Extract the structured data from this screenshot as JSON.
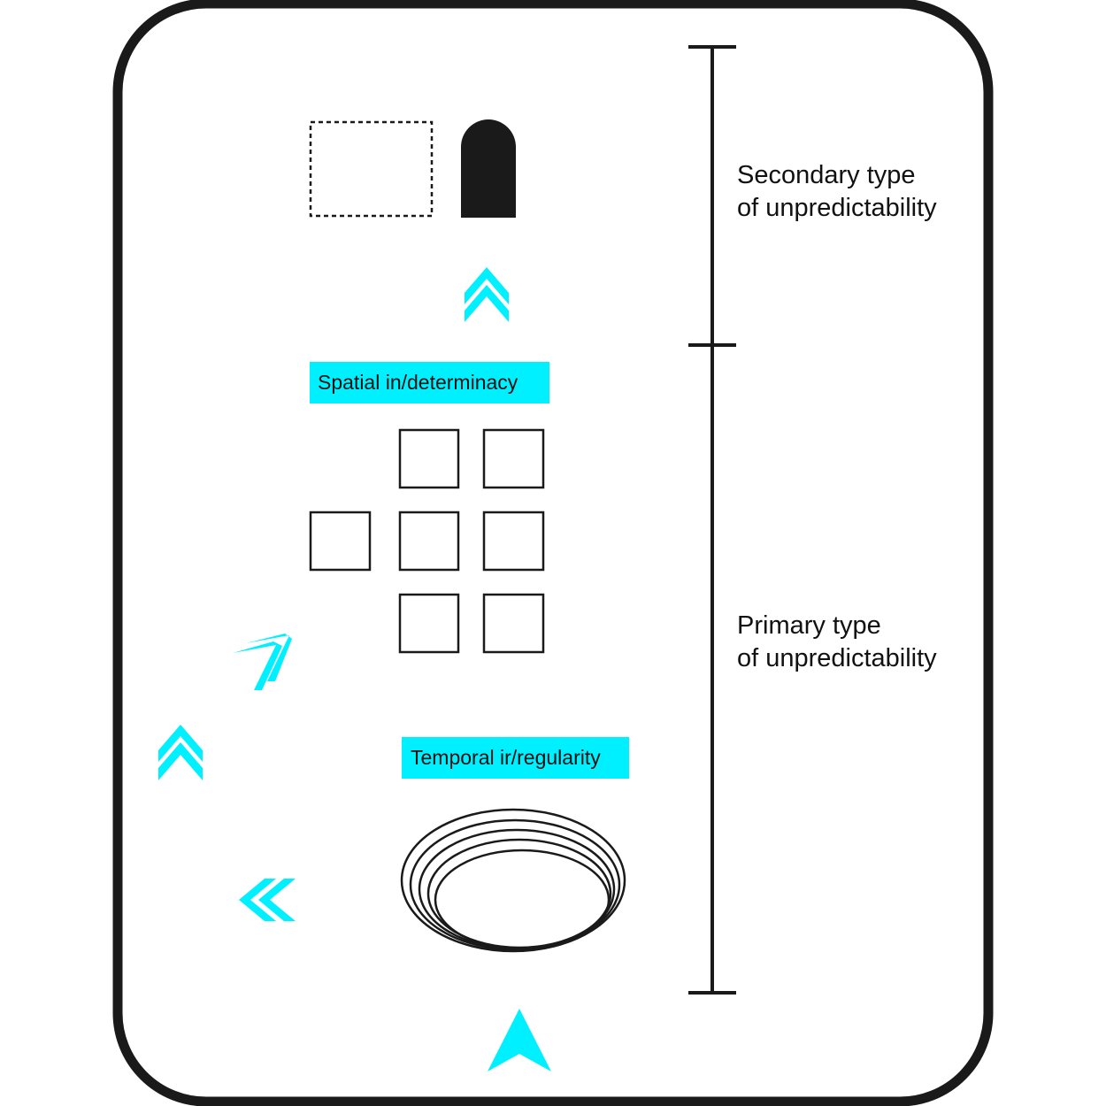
{
  "colors": {
    "accent": "#00f0ff",
    "ink": "#1a1a1a",
    "background": "#ffffff"
  },
  "scale": {
    "secondary": {
      "line1": "Secondary type",
      "line2": "of unpredictability"
    },
    "primary": {
      "line1": "Primary type",
      "line2": "of unpredictability"
    }
  },
  "tags": {
    "spatial": "Spatial in/determinacy",
    "temporal": "Temporal ir/regularity"
  },
  "icons": [
    "dotted-rectangle-icon",
    "arch-door-icon",
    "grid-squares-icon",
    "concentric-ellipses-icon",
    "double-chevron-up-icon",
    "double-chevron-diagonal-icon",
    "double-chevron-left-icon",
    "triangle-arrow-up-icon"
  ]
}
